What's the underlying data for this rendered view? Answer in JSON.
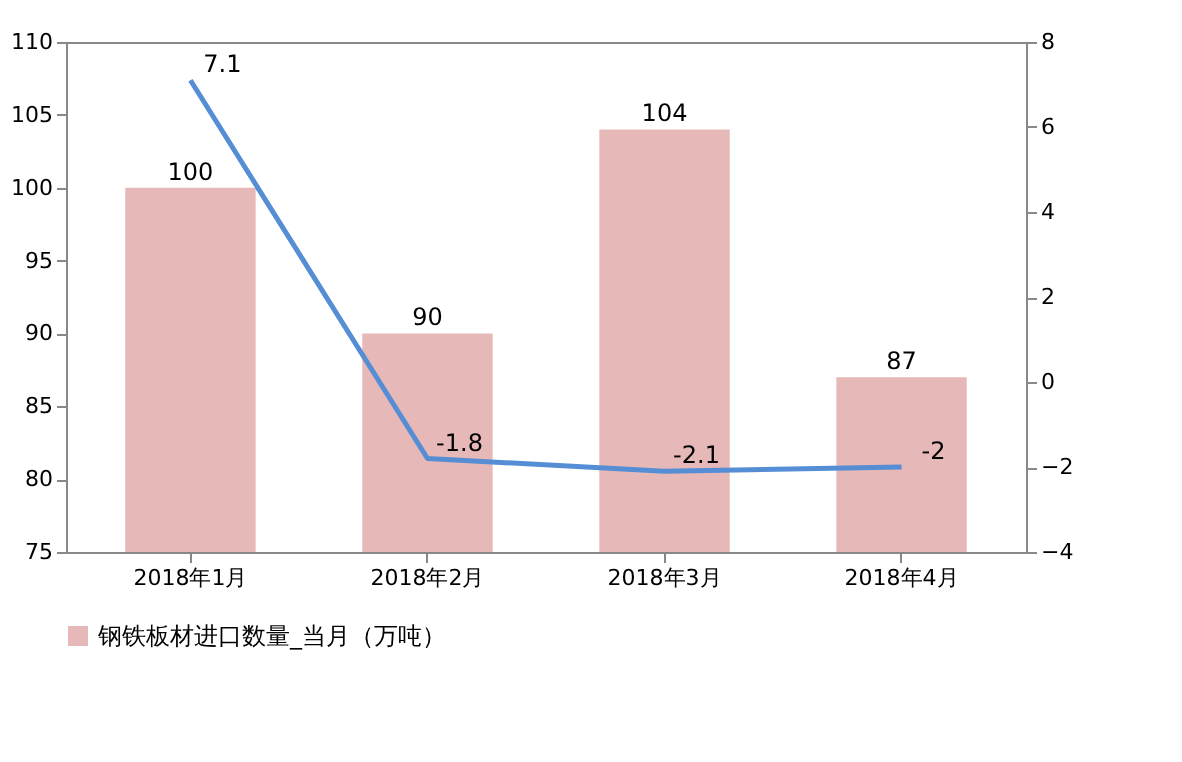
{
  "chart_data": {
    "type": "bar",
    "categories": [
      "2018年1月",
      "2018年2月",
      "2018年3月",
      "2018年4月"
    ],
    "series": [
      {
        "name": "钢铁板材进口数量_当月（万吨）",
        "color": "#e6b8b7",
        "values": [
          100,
          90,
          104,
          87
        ]
      },
      {
        "type": "line",
        "axis": "y2",
        "color": "#558ed5",
        "values": [
          7.1,
          -1.8,
          -2.1,
          -2
        ]
      }
    ],
    "ylim": [
      75,
      110
    ],
    "yticks": [
      75,
      80,
      85,
      90,
      95,
      100,
      105,
      110
    ],
    "y2lim": [
      -4,
      8
    ],
    "y2ticks": [
      -4,
      -2,
      0,
      2,
      4,
      6,
      8
    ],
    "data_labels": true,
    "grid": false,
    "legend": "bottom",
    "marker": "none",
    "line_style": "solid"
  }
}
